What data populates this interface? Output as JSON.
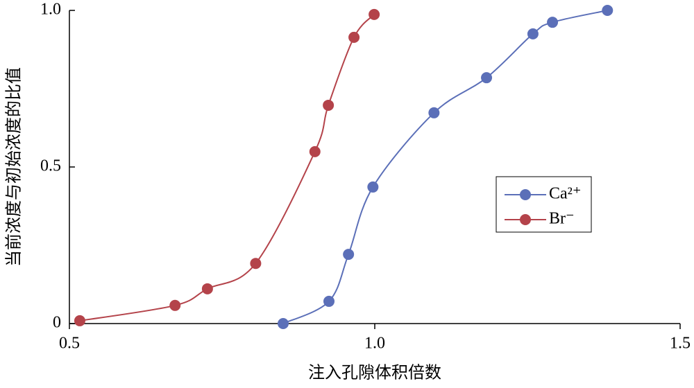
{
  "chart_data": {
    "type": "line",
    "x_label": "注入孔隙体积倍数",
    "y_label": "当前浓度与初始浓度的比值",
    "xlim": [
      0.5,
      1.5
    ],
    "xticks": [
      0.5,
      {
        "value": 1,
        "label": "1.0"
      },
      1.5
    ],
    "ylim": [
      0,
      1
    ],
    "yticks": [
      0,
      0.5,
      {
        "value": 1,
        "label": "1.0"
      }
    ],
    "legend": "right",
    "series": [
      {
        "name": "Ca²⁺",
        "color": "#5b6fb8",
        "x": [
          0.85,
          0.925,
          0.957,
          0.997,
          1.097,
          1.183,
          1.259,
          1.291,
          1.381
        ],
        "values": [
          0,
          0.071,
          0.221,
          0.436,
          0.673,
          0.785,
          0.925,
          0.962,
          1.0
        ]
      },
      {
        "name": "Br⁻",
        "color": "#b4434a",
        "x": [
          0.517,
          0.673,
          0.726,
          0.805,
          0.902,
          0.924,
          0.966,
          0.999
        ],
        "values": [
          0.009,
          0.058,
          0.111,
          0.192,
          0.549,
          0.697,
          0.914,
          0.987
        ]
      }
    ]
  }
}
